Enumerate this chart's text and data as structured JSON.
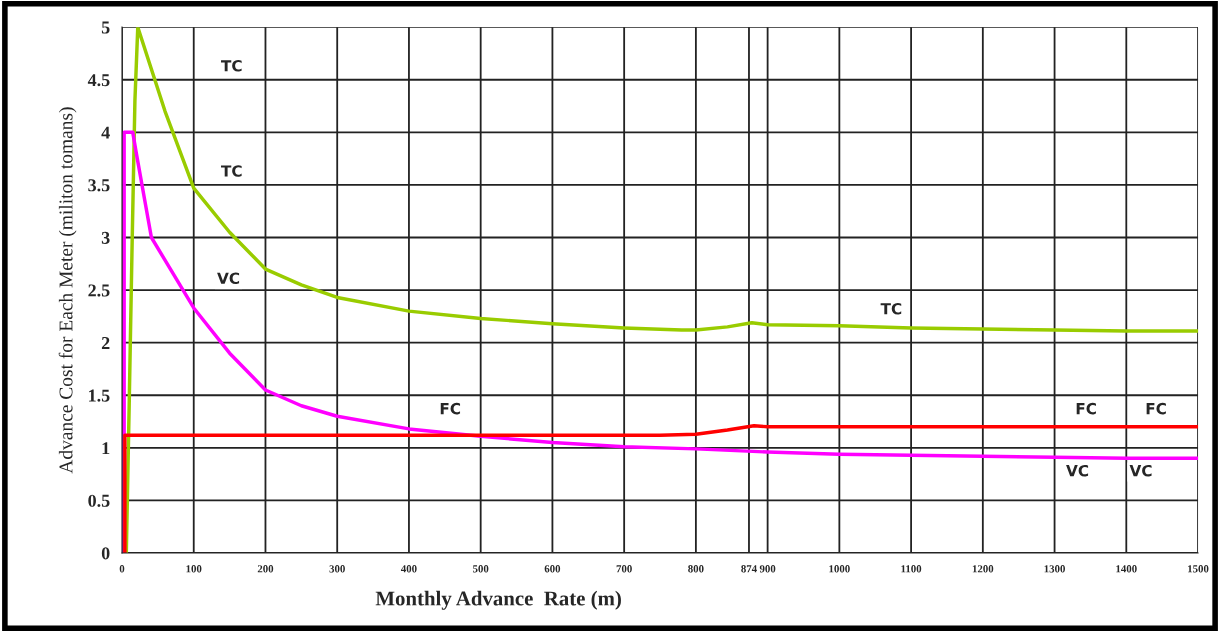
{
  "chart_data": {
    "type": "line",
    "xlabel": "Monthly Advance  Rate (m)",
    "ylabel": "Advance Cost for Each Meter (militon tomans)",
    "xlim": [
      0,
      1500
    ],
    "ylim": [
      0,
      5
    ],
    "xticks": [
      0,
      100,
      200,
      300,
      400,
      500,
      600,
      700,
      800,
      874,
      900,
      1000,
      1100,
      1200,
      1300,
      1400,
      1500
    ],
    "yticks": [
      0,
      0.5,
      1,
      1.5,
      2,
      2.5,
      3,
      3.5,
      4,
      4.5,
      5
    ],
    "grid": true,
    "legend": false,
    "marker": "none",
    "line_style": "solid",
    "series": [
      {
        "color": "#99cc00",
        "x": [
          6,
          10,
          14,
          18,
          22,
          60,
          100,
          150,
          200,
          250,
          300,
          400,
          500,
          600,
          700,
          780,
          800,
          844,
          878,
          900,
          1000,
          1100,
          1200,
          1300,
          1400,
          1500
        ],
        "values": [
          0,
          1.4,
          2.9,
          4.3,
          5,
          4.2,
          3.47,
          3.05,
          2.7,
          2.55,
          2.43,
          2.3,
          2.23,
          2.18,
          2.14,
          2.12,
          2.12,
          2.15,
          2.19,
          2.17,
          2.16,
          2.14,
          2.13,
          2.12,
          2.11,
          2.11
        ]
      },
      {
        "color": "#ff00ff",
        "x": [
          3,
          3,
          15,
          20,
          41,
          100,
          150,
          200,
          250,
          300,
          400,
          500,
          600,
          700,
          800,
          900,
          1000,
          1100,
          1200,
          1300,
          1400,
          1500
        ],
        "values": [
          0,
          4,
          4,
          3.8,
          3.0,
          2.33,
          1.9,
          1.55,
          1.4,
          1.3,
          1.18,
          1.11,
          1.05,
          1.01,
          0.99,
          0.96,
          0.94,
          0.93,
          0.92,
          0.91,
          0.9,
          0.9
        ]
      },
      {
        "color": "#ff0000",
        "x": [
          4,
          4,
          200,
          400,
          600,
          750,
          800,
          844,
          881,
          900,
          1000,
          1200,
          1500
        ],
        "values": [
          0,
          1.12,
          1.12,
          1.12,
          1.12,
          1.12,
          1.13,
          1.17,
          1.21,
          1.2,
          1.2,
          1.2,
          1.2
        ]
      }
    ],
    "annotations": [
      "TC",
      "TC",
      "VC",
      "TC",
      "FC",
      "FC",
      "FC",
      "VC",
      "VC"
    ]
  }
}
